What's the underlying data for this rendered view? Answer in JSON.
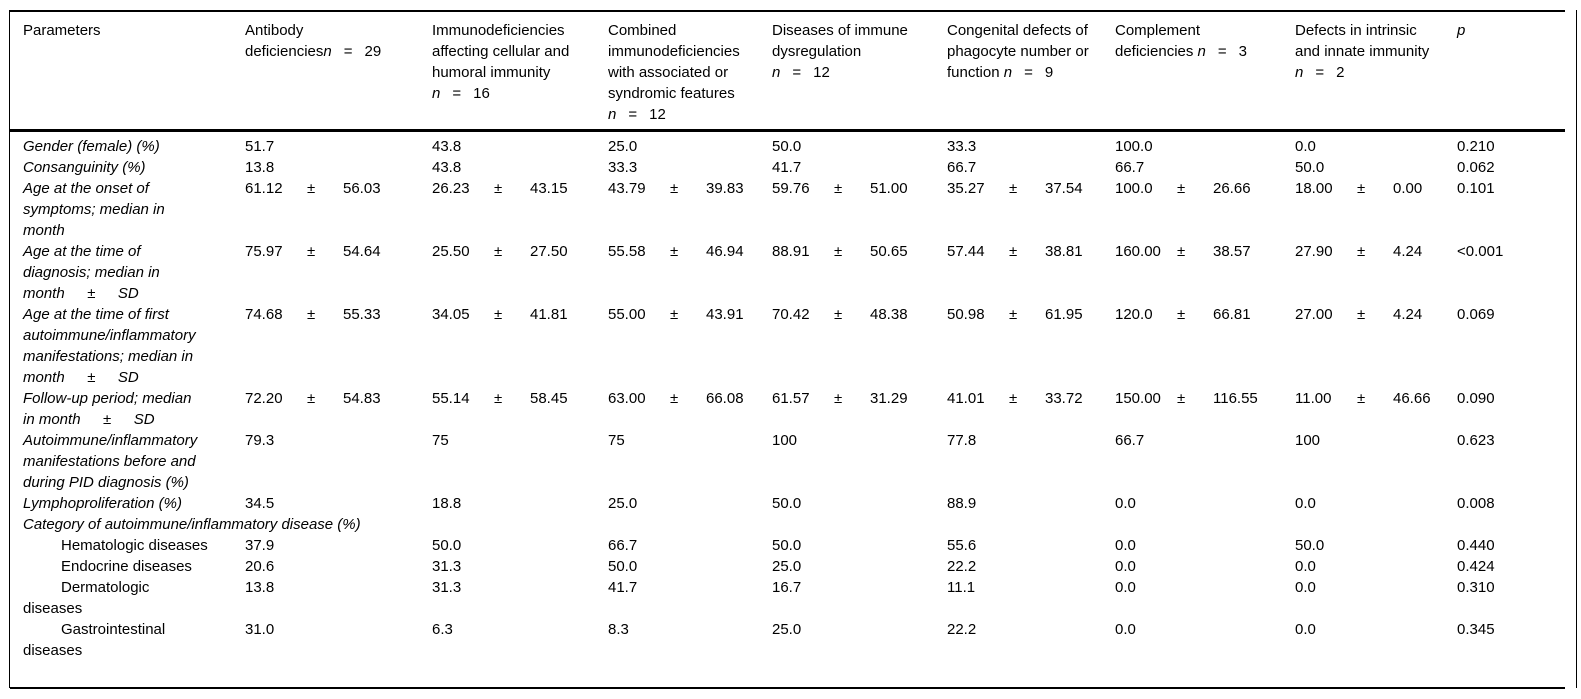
{
  "colors": {
    "text": "#000000",
    "background": "#ffffff",
    "rule": "#000000"
  },
  "table": {
    "columns": [
      {
        "key": "parameters",
        "label": "Parameters"
      },
      {
        "key": "antibody-deficiencies",
        "label": "Antibody\ndeficiencies",
        "n": "29"
      },
      {
        "key": "immunodeficiencies-cellular-humoral",
        "label": "Immunodeficiencies\naffecting cellular and\nhumoral immunity\n",
        "n": "16"
      },
      {
        "key": "combined-immunodeficiencies",
        "label": "Combined\nimmunodeficiencies\nwith associated or\nsyndromic features\n",
        "n": "12"
      },
      {
        "key": "immune-dysregulation",
        "label": "Diseases of immune\ndysregulation\n",
        "n": "12"
      },
      {
        "key": "phagocyte-defects",
        "label": "Congenital defects of\nphagocyte number or\nfunction ",
        "n": "9"
      },
      {
        "key": "complement-deficiencies",
        "label": "Complement\ndeficiencies ",
        "n": "3"
      },
      {
        "key": "intrinsic-innate-immunity",
        "label": "Defects in intrinsic\nand innate immunity\n",
        "n": "2"
      },
      {
        "key": "p",
        "label": "p",
        "italic": true
      }
    ],
    "rows": [
      {
        "label": "Gender (female) (%)",
        "values": [
          "51.7",
          "43.8",
          "25.0",
          "50.0",
          "33.3",
          "100.0",
          "0.0"
        ],
        "p": "0.210"
      },
      {
        "label": "Consanguinity (%)",
        "values": [
          "13.8",
          "43.8",
          "33.3",
          "41.7",
          "66.7",
          "66.7",
          "50.0"
        ],
        "p": "0.062"
      },
      {
        "label": "Age at the onset of\nsymptoms; median in\nmonth",
        "values": [
          [
            "61.12",
            "56.03"
          ],
          [
            "26.23",
            "43.15"
          ],
          [
            "43.79",
            "39.83"
          ],
          [
            "59.76",
            "51.00"
          ],
          [
            "35.27",
            "37.54"
          ],
          [
            "100.0",
            "26.66"
          ],
          [
            "18.00",
            "0.00"
          ]
        ],
        "p": "0.101"
      },
      {
        "label": "Age at the time of\ndiagnosis; median in\nmonth  ±  SD",
        "values": [
          [
            "75.97",
            "54.64"
          ],
          [
            "25.50",
            "27.50"
          ],
          [
            "55.58",
            "46.94"
          ],
          [
            "88.91",
            "50.65"
          ],
          [
            "57.44",
            "38.81"
          ],
          [
            "160.00",
            "38.57"
          ],
          [
            "27.90",
            "4.24"
          ]
        ],
        "p": "<0.001"
      },
      {
        "label": "Age at the time of first\nautoimmune/inflammatory\nmanifestations; median in\nmonth  ±  SD",
        "values": [
          [
            "74.68",
            "55.33"
          ],
          [
            "34.05",
            "41.81"
          ],
          [
            "55.00",
            "43.91"
          ],
          [
            "70.42",
            "48.38"
          ],
          [
            "50.98",
            "61.95"
          ],
          [
            "120.0",
            "66.81"
          ],
          [
            "27.00",
            "4.24"
          ]
        ],
        "p": "0.069"
      },
      {
        "label": "Follow-up period; median\nin month  ±  SD",
        "values": [
          [
            "72.20",
            "54.83"
          ],
          [
            "55.14",
            "58.45"
          ],
          [
            "63.00",
            "66.08"
          ],
          [
            "61.57",
            "31.29"
          ],
          [
            "41.01",
            "33.72"
          ],
          [
            "150.00",
            "116.55"
          ],
          [
            "11.00",
            "46.66"
          ]
        ],
        "p": "0.090"
      },
      {
        "label": "Autoimmune/inflammatory\nmanifestations before and\nduring PID diagnosis (%)",
        "values": [
          "79.3",
          "75",
          "75",
          "100",
          "77.8",
          "66.7",
          "100"
        ],
        "p": "0.623"
      },
      {
        "label": "Lymphoproliferation (%)",
        "values": [
          "34.5",
          "18.8",
          "25.0",
          "50.0",
          "88.9",
          "0.0",
          "0.0"
        ],
        "p": "0.008"
      },
      {
        "label": "Category of autoimmune/inflammatory disease (%)",
        "section": true
      },
      {
        "label": "Hematologic diseases",
        "plain": true,
        "indent": true,
        "values": [
          "37.9",
          "50.0",
          "66.7",
          "50.0",
          "55.6",
          "0.0",
          "50.0"
        ],
        "p": "0.440"
      },
      {
        "label": "Endocrine diseases",
        "plain": true,
        "indent": true,
        "values": [
          "20.6",
          "31.3",
          "50.0",
          "25.0",
          "22.2",
          "0.0",
          "0.0"
        ],
        "p": "0.424"
      },
      {
        "label": "Dermatologic\ndiseases",
        "plain": true,
        "indent": true,
        "values": [
          "13.8",
          "31.3",
          "41.7",
          "16.7",
          "11.1",
          "0.0",
          "0.0"
        ],
        "p": "0.310"
      },
      {
        "label": "Gastrointestinal\ndiseases",
        "plain": true,
        "indent": true,
        "values": [
          "31.0",
          "6.3",
          "8.3",
          "25.0",
          "22.2",
          "0.0",
          "0.0"
        ],
        "p": "0.345"
      }
    ]
  }
}
